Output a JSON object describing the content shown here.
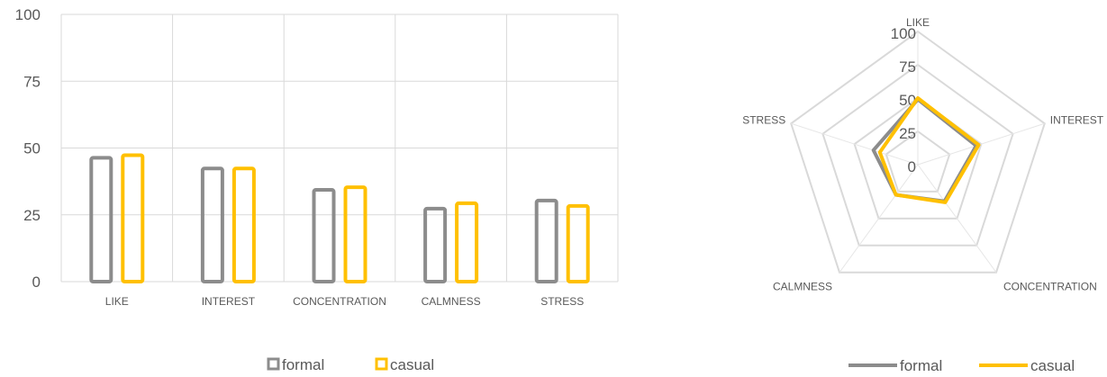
{
  "chart_data": [
    {
      "type": "bar",
      "categories": [
        "LIKE",
        "INTEREST",
        "CONCENTRATION",
        "CALMNESS",
        "STRESS"
      ],
      "series": [
        {
          "name": "formal",
          "values": [
            47,
            43,
            35,
            28,
            31
          ],
          "color": "#8c8c8c"
        },
        {
          "name": "casual",
          "values": [
            48,
            43,
            36,
            30,
            29
          ],
          "color": "#ffc000"
        }
      ],
      "yticks": [
        "0",
        "25",
        "50",
        "75",
        "100"
      ],
      "ylim": [
        0,
        100
      ],
      "grid": true,
      "legend": "bottom"
    },
    {
      "type": "radar",
      "categories": [
        "LIKE",
        "INTEREST",
        "CONCENTRATION",
        "CALMNESS",
        "STRESS"
      ],
      "series": [
        {
          "name": "formal",
          "values": [
            49,
            46,
            34,
            28,
            35
          ],
          "color": "#8c8c8c"
        },
        {
          "name": "casual",
          "values": [
            50,
            48,
            35,
            28,
            30
          ],
          "color": "#ffc000"
        }
      ],
      "rticks": [
        "0",
        "25",
        "50",
        "75",
        "100"
      ],
      "rlim": [
        0,
        100
      ],
      "grid": true,
      "legend": "bottom"
    }
  ]
}
